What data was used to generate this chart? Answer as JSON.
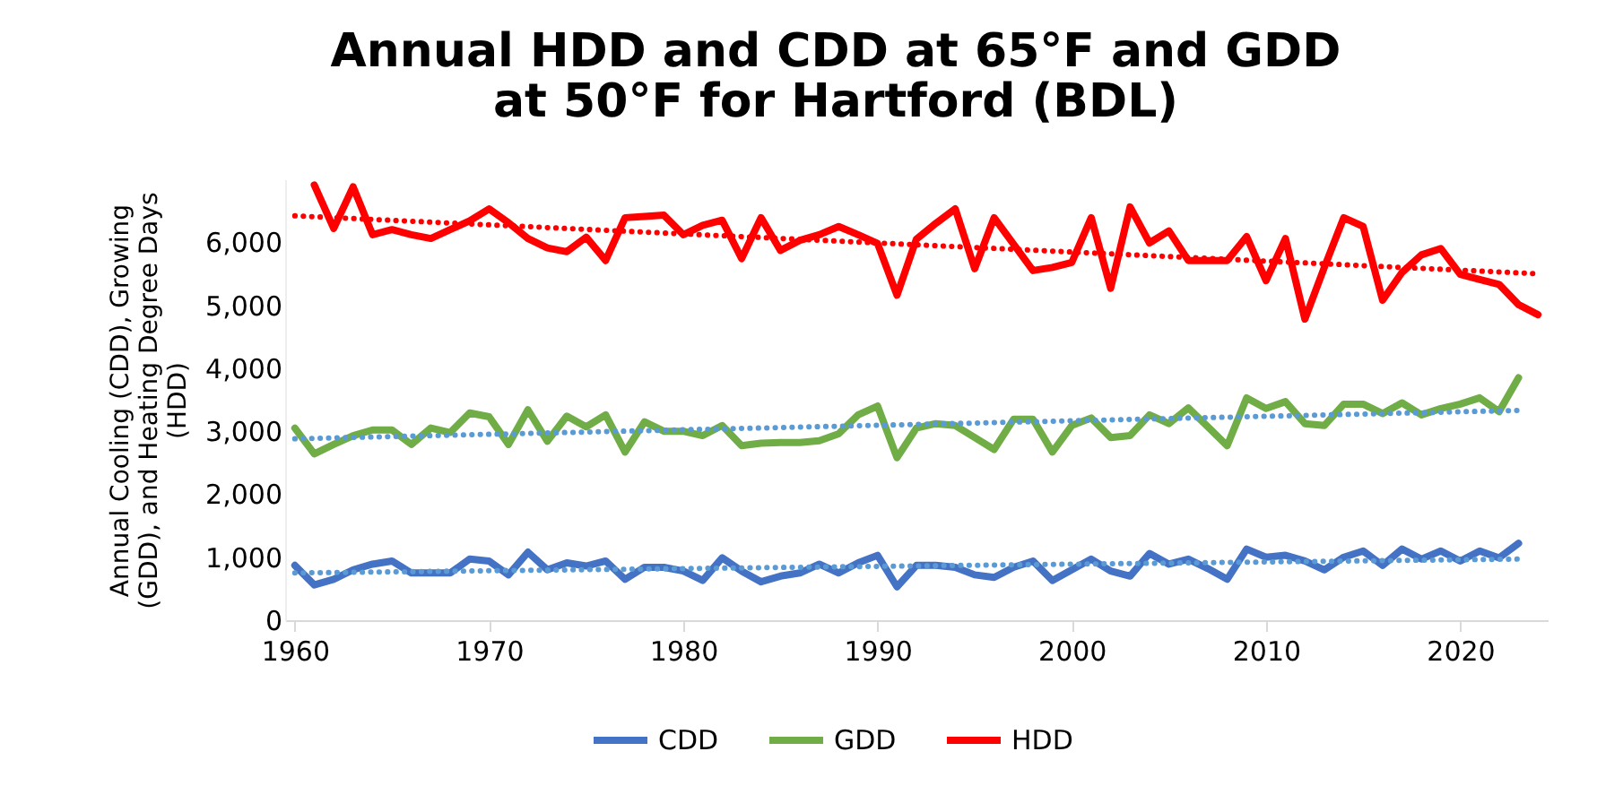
{
  "chart_data": {
    "type": "line",
    "title": "Annual HDD and CDD at 65°F and GDD at 50°F for Hartford (BDL)",
    "ylabel": "Annual Cooling (CDD), Growing (GDD), and Heating Degree Days (HDD)",
    "x": [
      1960,
      1961,
      1962,
      1963,
      1964,
      1965,
      1966,
      1967,
      1968,
      1969,
      1970,
      1971,
      1972,
      1973,
      1974,
      1975,
      1976,
      1977,
      1978,
      1979,
      1980,
      1981,
      1982,
      1983,
      1984,
      1985,
      1986,
      1987,
      1988,
      1989,
      1990,
      1991,
      1992,
      1993,
      1994,
      1995,
      1996,
      1997,
      1998,
      1999,
      2000,
      2001,
      2002,
      2003,
      2004,
      2005,
      2006,
      2007,
      2008,
      2009,
      2010,
      2011,
      2012,
      2013,
      2014,
      2015,
      2016,
      2017,
      2018,
      2019,
      2020,
      2021,
      2022,
      2023,
      2024
    ],
    "series": [
      {
        "name": "CDD",
        "color": "#4472c4",
        "values": [
          870,
          560,
          650,
          800,
          890,
          940,
          750,
          750,
          750,
          970,
          940,
          720,
          1080,
          800,
          910,
          860,
          940,
          650,
          840,
          840,
          780,
          630,
          990,
          780,
          610,
          700,
          750,
          890,
          750,
          910,
          1030,
          530,
          870,
          870,
          840,
          720,
          680,
          840,
          940,
          630,
          800,
          970,
          780,
          700,
          1060,
          890,
          970,
          820,
          650,
          1130,
          1000,
          1030,
          940,
          800,
          1000,
          1100,
          870,
          1130,
          970,
          1100,
          940,
          1100,
          990,
          1220,
          null
        ]
      },
      {
        "name": "GDD",
        "color": "#70ad47",
        "values": [
          3050,
          2640,
          2790,
          2930,
          3020,
          3020,
          2790,
          3050,
          2980,
          3290,
          3230,
          2790,
          3340,
          2840,
          3240,
          3070,
          3260,
          2670,
          3150,
          3000,
          3000,
          2930,
          3090,
          2770,
          2810,
          2820,
          2820,
          2850,
          2960,
          3260,
          3400,
          2580,
          3050,
          3120,
          3090,
          2900,
          2710,
          3190,
          3190,
          2670,
          3090,
          3210,
          2900,
          2930,
          3260,
          3120,
          3370,
          3070,
          2770,
          3530,
          3360,
          3470,
          3120,
          3090,
          3430,
          3430,
          3280,
          3450,
          3260,
          3360,
          3430,
          3530,
          3310,
          3850,
          null
        ]
      },
      {
        "name": "HDD",
        "color": "#ff0000",
        "values": [
          null,
          6910,
          6220,
          6880,
          6120,
          6200,
          6120,
          6060,
          6200,
          6340,
          6530,
          6310,
          6060,
          5910,
          5850,
          6080,
          5710,
          6390,
          6410,
          6430,
          6120,
          6270,
          6350,
          5740,
          6390,
          5870,
          6030,
          6120,
          6250,
          6120,
          5980,
          5160,
          6050,
          6300,
          6530,
          5580,
          6390,
          5970,
          5550,
          5600,
          5680,
          6390,
          5270,
          6560,
          5990,
          6180,
          5710,
          5710,
          5710,
          6090,
          5390,
          6060,
          4780,
          5600,
          6390,
          6250,
          5080,
          5520,
          5800,
          5900,
          5490,
          5410,
          5330,
          5010,
          4850
        ]
      },
      {
        "color": "#5b9bd5",
        "x": [
          1960,
          2023
        ],
        "values": [
          750,
          970
        ],
        "line_style": "dotted"
      },
      {
        "color": "#5b9bd5",
        "x": [
          1960,
          2023
        ],
        "values": [
          2880,
          3330
        ],
        "line_style": "dotted"
      },
      {
        "color": "#ff0000",
        "x": [
          1960,
          2024
        ],
        "values": [
          6420,
          5500
        ],
        "line_style": "dotted"
      }
    ],
    "xlim": [
      1959.5,
      2024.5
    ],
    "xticks": [
      1960,
      1970,
      1980,
      1990,
      2000,
      2010,
      2020
    ],
    "ylim": [
      0,
      7000
    ],
    "yticks": [
      0,
      {
        "value": 1000,
        "label": "1,000"
      },
      {
        "value": 2000,
        "label": "2,000"
      },
      {
        "value": 3000,
        "label": "3,000"
      },
      {
        "value": 4000,
        "label": "4,000"
      },
      {
        "value": 5000,
        "label": "5,000"
      },
      {
        "value": 6000,
        "label": "6,000"
      }
    ],
    "legend": "bottom",
    "marker": "none",
    "line_style": "solid"
  }
}
